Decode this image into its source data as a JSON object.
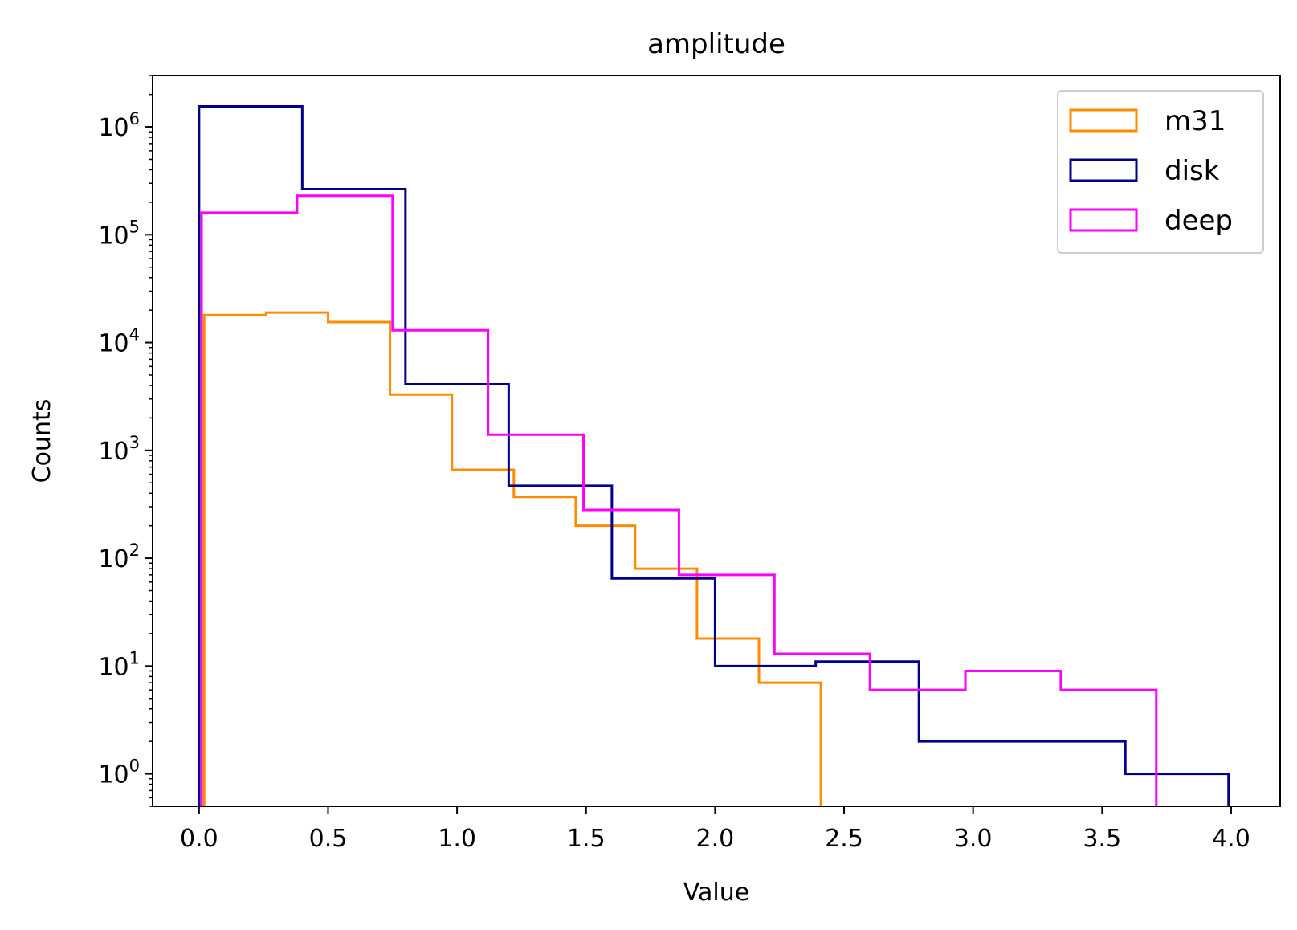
{
  "chart_data": {
    "type": "histogram",
    "title": "amplitude",
    "xlabel": "Value",
    "ylabel": "Counts",
    "yscale": "log",
    "xlim": [
      -0.18,
      4.19
    ],
    "ylim": [
      0.5,
      3000000
    ],
    "xticks": [
      {
        "value": 0.0,
        "label": "0.0"
      },
      {
        "value": 0.5,
        "label": "0.5"
      },
      {
        "value": 1.0,
        "label": "1.0"
      },
      {
        "value": 1.5,
        "label": "1.5"
      },
      {
        "value": 2.0,
        "label": "2.0"
      },
      {
        "value": 2.5,
        "label": "2.5"
      },
      {
        "value": 3.0,
        "label": "3.0"
      },
      {
        "value": 3.5,
        "label": "3.5"
      },
      {
        "value": 4.0,
        "label": "4.0"
      }
    ],
    "yticks": [
      {
        "value": 1,
        "base": "10",
        "exp": "0"
      },
      {
        "value": 10,
        "base": "10",
        "exp": "1"
      },
      {
        "value": 100,
        "base": "10",
        "exp": "2"
      },
      {
        "value": 1000,
        "base": "10",
        "exp": "3"
      },
      {
        "value": 10000,
        "base": "10",
        "exp": "4"
      },
      {
        "value": 100000,
        "base": "10",
        "exp": "5"
      },
      {
        "value": 1000000,
        "base": "10",
        "exp": "6"
      }
    ],
    "grid": false,
    "legend_position": "top-right",
    "series": [
      {
        "name": "m31",
        "color": "#ff8c00",
        "bin_edges": [
          0.02,
          0.26,
          0.5,
          0.74,
          0.98,
          1.22,
          1.46,
          1.69,
          1.93,
          2.17,
          2.41
        ],
        "counts": [
          18000,
          19000,
          15500,
          3300,
          660,
          370,
          200,
          80,
          18,
          7
        ]
      },
      {
        "name": "disk",
        "color": "#00008b",
        "bin_edges": [
          0.0,
          0.4,
          0.8,
          1.2,
          1.6,
          2.0,
          2.39,
          2.79,
          3.19,
          3.59,
          3.99
        ],
        "counts": [
          1550000,
          265000,
          4100,
          470,
          65,
          10,
          11,
          2,
          2,
          1
        ]
      },
      {
        "name": "deep",
        "color": "#ff00ff",
        "bin_edges": [
          0.01,
          0.38,
          0.75,
          1.12,
          1.49,
          1.86,
          2.23,
          2.6,
          2.97,
          3.34,
          3.71
        ],
        "counts": [
          160000,
          230000,
          13000,
          1400,
          280,
          70,
          13,
          6,
          9,
          6
        ]
      }
    ]
  }
}
